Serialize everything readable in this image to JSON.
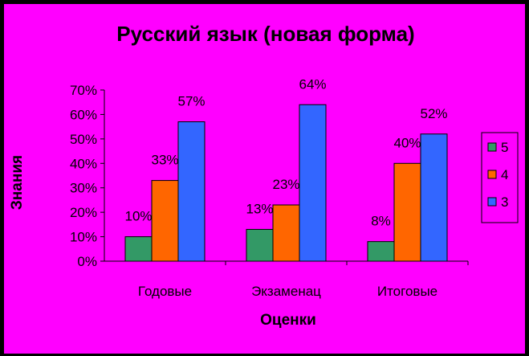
{
  "chart_data": {
    "type": "bar",
    "title": "Русский язык (новая форма)",
    "xlabel": "Оценки",
    "ylabel": "Знания",
    "categories": [
      "Годовые",
      "Экзаменац",
      "Итоговые"
    ],
    "series": [
      {
        "name": "5",
        "color": "#339966",
        "values": [
          10,
          13,
          8
        ],
        "labels": [
          "10%",
          "13%",
          "8%"
        ]
      },
      {
        "name": "4",
        "color": "#FF6600",
        "values": [
          33,
          23,
          40
        ],
        "labels": [
          "33%",
          "23%",
          "40%"
        ]
      },
      {
        "name": "3",
        "color": "#3366FF",
        "values": [
          57,
          64,
          52
        ],
        "labels": [
          "57%",
          "64%",
          "52%"
        ]
      }
    ],
    "yticks": [
      "0%",
      "10%",
      "20%",
      "30%",
      "40%",
      "50%",
      "60%",
      "70%"
    ],
    "ylim": [
      0,
      70
    ],
    "grid": false,
    "legend": "right",
    "background": "#FF00FF"
  }
}
